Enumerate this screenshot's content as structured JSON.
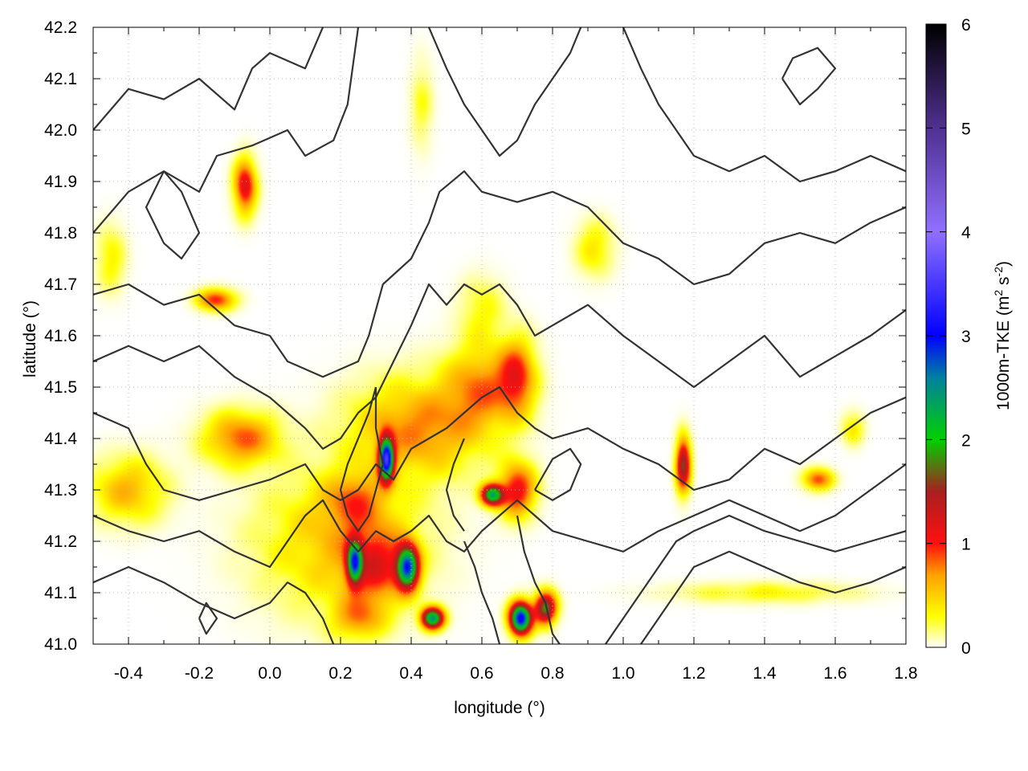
{
  "chart_data": {
    "type": "heatmap",
    "title": "",
    "xlabel": "longitude (°)",
    "ylabel": "latitude (°)",
    "colorbar_label": "1000m-TKE (m² s⁻²)",
    "colorbar_label_parts": {
      "main": "1000m-TKE (m",
      "sup1": "2",
      "mid": " s",
      "sup2": "-2",
      "end": ")"
    },
    "xlim": [
      -0.5,
      1.8
    ],
    "ylim": [
      41.0,
      42.2
    ],
    "clim": [
      0,
      6
    ],
    "x_ticks": [
      -0.4,
      -0.2,
      0.0,
      0.2,
      0.4,
      0.6,
      0.8,
      1.0,
      1.2,
      1.4,
      1.6,
      1.8
    ],
    "x_tick_labels": [
      "-0.4",
      "-0.2",
      "0.0",
      "0.2",
      "0.4",
      "0.6",
      "0.8",
      "1.0",
      "1.2",
      "1.4",
      "1.6",
      "1.8"
    ],
    "y_ticks": [
      41.0,
      41.1,
      41.2,
      41.3,
      41.4,
      41.5,
      41.6,
      41.7,
      41.8,
      41.9,
      42.0,
      42.1,
      42.2
    ],
    "y_tick_labels": [
      "41.0",
      "41.1",
      "41.2",
      "41.3",
      "41.4",
      "41.5",
      "41.6",
      "41.7",
      "41.8",
      "41.9",
      "42.0",
      "42.1",
      "42.2"
    ],
    "colorbar_ticks": [
      0,
      1,
      2,
      3,
      4,
      5,
      6
    ],
    "colorbar_tick_labels": [
      "0",
      "1",
      "2",
      "3",
      "4",
      "5",
      "6"
    ],
    "colormap": [
      {
        "v": 0.0,
        "c": "#ffffff"
      },
      {
        "v": 0.3,
        "c": "#ffff00"
      },
      {
        "v": 0.7,
        "c": "#ffa000"
      },
      {
        "v": 1.0,
        "c": "#ff1010"
      },
      {
        "v": 1.5,
        "c": "#a82020"
      },
      {
        "v": 2.0,
        "c": "#00d000"
      },
      {
        "v": 2.6,
        "c": "#0080a0"
      },
      {
        "v": 3.0,
        "c": "#0000ff"
      },
      {
        "v": 4.0,
        "c": "#9070ff"
      },
      {
        "v": 5.0,
        "c": "#503090"
      },
      {
        "v": 6.0,
        "c": "#000000"
      }
    ],
    "grid": true,
    "tke_features": [
      {
        "lon": 0.2,
        "lat": 41.2,
        "slon": 0.22,
        "slat": 0.13,
        "amp": 0.55
      },
      {
        "lon": 0.42,
        "lat": 41.42,
        "slon": 0.18,
        "slat": 0.09,
        "amp": 0.75
      },
      {
        "lon": 0.6,
        "lat": 41.5,
        "slon": 0.1,
        "slat": 0.08,
        "amp": 0.7
      },
      {
        "lon": -0.08,
        "lat": 41.4,
        "slon": 0.1,
        "slat": 0.05,
        "amp": 0.85
      },
      {
        "lon": -0.4,
        "lat": 41.3,
        "slon": 0.1,
        "slat": 0.06,
        "amp": 0.6
      },
      {
        "lon": 0.24,
        "lat": 41.28,
        "slon": 0.08,
        "slat": 0.05,
        "amp": 0.55
      },
      {
        "lon": 0.3,
        "lat": 41.15,
        "slon": 0.08,
        "slat": 0.07,
        "amp": 0.8
      },
      {
        "lon": 0.25,
        "lat": 41.05,
        "slon": 0.07,
        "slat": 0.04,
        "amp": 0.6
      },
      {
        "lon": 0.24,
        "lat": 41.16,
        "slon": 0.02,
        "slat": 0.04,
        "amp": 2.2
      },
      {
        "lon": 0.39,
        "lat": 41.15,
        "slon": 0.03,
        "slat": 0.04,
        "amp": 2.6
      },
      {
        "lon": 0.33,
        "lat": 41.36,
        "slon": 0.02,
        "slat": 0.04,
        "amp": 3.1
      },
      {
        "lon": 0.7,
        "lat": 41.52,
        "slon": 0.05,
        "slat": 0.07,
        "amp": 0.9
      },
      {
        "lon": 0.7,
        "lat": 41.3,
        "slon": 0.05,
        "slat": 0.05,
        "amp": 1.1
      },
      {
        "lon": 0.63,
        "lat": 41.29,
        "slon": 0.03,
        "slat": 0.02,
        "amp": 2.2
      },
      {
        "lon": 0.71,
        "lat": 41.05,
        "slon": 0.03,
        "slat": 0.03,
        "amp": 3.1
      },
      {
        "lon": 0.78,
        "lat": 41.07,
        "slon": 0.03,
        "slat": 0.03,
        "amp": 1.8
      },
      {
        "lon": 0.46,
        "lat": 41.05,
        "slon": 0.03,
        "slat": 0.02,
        "amp": 2.4
      },
      {
        "lon": -0.07,
        "lat": 41.89,
        "slon": 0.03,
        "slat": 0.05,
        "amp": 1.2
      },
      {
        "lon": -0.15,
        "lat": 41.67,
        "slon": 0.05,
        "slat": 0.02,
        "amp": 1.0
      },
      {
        "lon": 0.92,
        "lat": 41.77,
        "slon": 0.05,
        "slat": 0.05,
        "amp": 0.4
      },
      {
        "lon": 1.17,
        "lat": 41.35,
        "slon": 0.02,
        "slat": 0.05,
        "amp": 1.6
      },
      {
        "lon": 1.55,
        "lat": 41.32,
        "slon": 0.04,
        "slat": 0.02,
        "amp": 0.9
      },
      {
        "lon": 1.65,
        "lat": 41.42,
        "slon": 0.03,
        "slat": 0.03,
        "amp": 0.4
      },
      {
        "lon": 0.6,
        "lat": 41.65,
        "slon": 0.06,
        "slat": 0.06,
        "amp": 0.3
      },
      {
        "lon": -0.45,
        "lat": 41.75,
        "slon": 0.04,
        "slat": 0.06,
        "amp": 0.35
      },
      {
        "lon": 0.43,
        "lat": 42.05,
        "slon": 0.03,
        "slat": 0.08,
        "amp": 0.25
      },
      {
        "lon": 1.4,
        "lat": 41.1,
        "slon": 0.25,
        "slat": 0.02,
        "amp": 0.3
      }
    ],
    "contours": [
      [
        [
          -0.5,
          42.0
        ],
        [
          -0.4,
          42.08
        ],
        [
          -0.3,
          42.06
        ],
        [
          -0.2,
          42.1
        ],
        [
          -0.1,
          42.04
        ],
        [
          -0.05,
          42.12
        ],
        [
          0.0,
          42.15
        ],
        [
          0.1,
          42.12
        ],
        [
          0.15,
          42.2
        ]
      ],
      [
        [
          -0.5,
          41.8
        ],
        [
          -0.4,
          41.88
        ],
        [
          -0.3,
          41.92
        ],
        [
          -0.2,
          41.88
        ],
        [
          -0.15,
          41.95
        ],
        [
          -0.05,
          41.97
        ],
        [
          0.05,
          42.0
        ],
        [
          0.1,
          41.95
        ],
        [
          0.18,
          41.98
        ],
        [
          0.22,
          42.05
        ],
        [
          0.25,
          42.2
        ]
      ],
      [
        [
          -0.5,
          41.68
        ],
        [
          -0.4,
          41.7
        ],
        [
          -0.3,
          41.66
        ],
        [
          -0.2,
          41.68
        ],
        [
          -0.1,
          41.62
        ],
        [
          0.0,
          41.6
        ],
        [
          0.05,
          41.55
        ],
        [
          0.15,
          41.52
        ],
        [
          0.25,
          41.55
        ],
        [
          0.28,
          41.6
        ],
        [
          0.32,
          41.7
        ],
        [
          0.4,
          41.75
        ],
        [
          0.45,
          41.82
        ],
        [
          0.48,
          41.88
        ],
        [
          0.55,
          41.92
        ],
        [
          0.6,
          41.88
        ],
        [
          0.7,
          41.86
        ],
        [
          0.8,
          41.88
        ],
        [
          0.9,
          41.85
        ],
        [
          1.0,
          41.78
        ],
        [
          1.1,
          41.75
        ],
        [
          1.2,
          41.7
        ],
        [
          1.3,
          41.72
        ],
        [
          1.4,
          41.78
        ],
        [
          1.5,
          41.8
        ],
        [
          1.6,
          41.78
        ],
        [
          1.7,
          41.82
        ],
        [
          1.8,
          41.85
        ]
      ],
      [
        [
          -0.5,
          41.55
        ],
        [
          -0.4,
          41.58
        ],
        [
          -0.3,
          41.55
        ],
        [
          -0.2,
          41.58
        ],
        [
          -0.1,
          41.52
        ],
        [
          0.0,
          41.48
        ],
        [
          0.05,
          41.45
        ],
        [
          0.1,
          41.42
        ],
        [
          0.15,
          41.38
        ],
        [
          0.2,
          41.4
        ],
        [
          0.25,
          41.45
        ],
        [
          0.3,
          41.48
        ],
        [
          0.35,
          41.55
        ],
        [
          0.4,
          41.62
        ],
        [
          0.45,
          41.7
        ],
        [
          0.5,
          41.66
        ],
        [
          0.55,
          41.7
        ],
        [
          0.6,
          41.68
        ],
        [
          0.65,
          41.7
        ],
        [
          0.7,
          41.66
        ],
        [
          0.75,
          41.6
        ],
        [
          0.8,
          41.62
        ],
        [
          0.9,
          41.66
        ],
        [
          1.0,
          41.6
        ],
        [
          1.1,
          41.55
        ],
        [
          1.2,
          41.5
        ],
        [
          1.3,
          41.55
        ],
        [
          1.4,
          41.6
        ],
        [
          1.5,
          41.52
        ],
        [
          1.6,
          41.56
        ],
        [
          1.7,
          41.6
        ],
        [
          1.8,
          41.65
        ]
      ],
      [
        [
          -0.5,
          41.45
        ],
        [
          -0.4,
          41.42
        ],
        [
          -0.35,
          41.35
        ],
        [
          -0.3,
          41.3
        ],
        [
          -0.2,
          41.28
        ],
        [
          -0.1,
          41.3
        ],
        [
          0.0,
          41.32
        ],
        [
          0.1,
          41.35
        ],
        [
          0.15,
          41.3
        ],
        [
          0.2,
          41.28
        ],
        [
          0.25,
          41.3
        ],
        [
          0.3,
          41.35
        ],
        [
          0.35,
          41.32
        ],
        [
          0.4,
          41.38
        ],
        [
          0.45,
          41.4
        ],
        [
          0.5,
          41.42
        ],
        [
          0.55,
          41.45
        ],
        [
          0.6,
          41.48
        ],
        [
          0.65,
          41.5
        ],
        [
          0.7,
          41.45
        ],
        [
          0.75,
          41.42
        ],
        [
          0.8,
          41.4
        ],
        [
          0.9,
          41.42
        ],
        [
          1.0,
          41.38
        ],
        [
          1.1,
          41.35
        ],
        [
          1.2,
          41.3
        ],
        [
          1.3,
          41.32
        ],
        [
          1.4,
          41.38
        ],
        [
          1.5,
          41.35
        ],
        [
          1.6,
          41.4
        ],
        [
          1.7,
          41.45
        ],
        [
          1.8,
          41.48
        ]
      ],
      [
        [
          -0.5,
          41.25
        ],
        [
          -0.4,
          41.22
        ],
        [
          -0.3,
          41.2
        ],
        [
          -0.2,
          41.22
        ],
        [
          -0.1,
          41.18
        ],
        [
          0.0,
          41.15
        ],
        [
          0.05,
          41.2
        ],
        [
          0.1,
          41.25
        ],
        [
          0.15,
          41.28
        ],
        [
          0.2,
          41.22
        ],
        [
          0.25,
          41.18
        ],
        [
          0.3,
          41.22
        ],
        [
          0.35,
          41.2
        ],
        [
          0.4,
          41.22
        ],
        [
          0.45,
          41.25
        ],
        [
          0.5,
          41.2
        ],
        [
          0.55,
          41.18
        ],
        [
          0.6,
          41.22
        ],
        [
          0.65,
          41.25
        ],
        [
          0.7,
          41.28
        ],
        [
          0.75,
          41.25
        ],
        [
          0.8,
          41.22
        ],
        [
          0.9,
          41.2
        ],
        [
          1.0,
          41.18
        ],
        [
          1.1,
          41.22
        ],
        [
          1.2,
          41.25
        ],
        [
          1.3,
          41.28
        ],
        [
          1.4,
          41.25
        ],
        [
          1.5,
          41.22
        ],
        [
          1.6,
          41.25
        ],
        [
          1.7,
          41.3
        ],
        [
          1.8,
          41.35
        ]
      ],
      [
        [
          -0.5,
          41.12
        ],
        [
          -0.4,
          41.15
        ],
        [
          -0.3,
          41.12
        ],
        [
          -0.2,
          41.08
        ],
        [
          -0.1,
          41.05
        ],
        [
          0.0,
          41.08
        ],
        [
          0.05,
          41.12
        ],
        [
          0.1,
          41.1
        ],
        [
          0.15,
          41.05
        ],
        [
          0.18,
          41.0
        ]
      ],
      [
        [
          0.95,
          41.0
        ],
        [
          1.0,
          41.05
        ],
        [
          1.05,
          41.1
        ],
        [
          1.1,
          41.15
        ],
        [
          1.15,
          41.2
        ],
        [
          1.2,
          41.22
        ],
        [
          1.3,
          41.25
        ],
        [
          1.4,
          41.22
        ],
        [
          1.5,
          41.2
        ],
        [
          1.6,
          41.18
        ],
        [
          1.7,
          41.2
        ],
        [
          1.8,
          41.22
        ]
      ],
      [
        [
          1.05,
          41.0
        ],
        [
          1.1,
          41.05
        ],
        [
          1.15,
          41.1
        ],
        [
          1.2,
          41.15
        ],
        [
          1.3,
          41.18
        ],
        [
          1.4,
          41.15
        ],
        [
          1.5,
          41.12
        ],
        [
          1.6,
          41.1
        ],
        [
          1.7,
          41.12
        ],
        [
          1.8,
          41.15
        ]
      ],
      [
        [
          0.3,
          41.5
        ],
        [
          0.28,
          41.45
        ],
        [
          0.25,
          41.4
        ],
        [
          0.22,
          41.35
        ],
        [
          0.2,
          41.3
        ],
        [
          0.22,
          41.25
        ],
        [
          0.25,
          41.22
        ],
        [
          0.28,
          41.25
        ],
        [
          0.3,
          41.3
        ],
        [
          0.32,
          41.35
        ],
        [
          0.3,
          41.42
        ],
        [
          0.3,
          41.5
        ]
      ],
      [
        [
          0.55,
          41.2
        ],
        [
          0.58,
          41.15
        ],
        [
          0.6,
          41.1
        ],
        [
          0.63,
          41.05
        ],
        [
          0.65,
          41.0
        ]
      ],
      [
        [
          0.7,
          41.25
        ],
        [
          0.72,
          41.18
        ],
        [
          0.75,
          41.12
        ],
        [
          0.78,
          41.08
        ],
        [
          0.8,
          41.02
        ],
        [
          0.82,
          41.0
        ]
      ],
      [
        [
          0.55,
          41.4
        ],
        [
          0.52,
          41.35
        ],
        [
          0.5,
          41.3
        ],
        [
          0.52,
          41.25
        ],
        [
          0.55,
          41.22
        ]
      ],
      [
        [
          1.0,
          42.2
        ],
        [
          1.05,
          42.12
        ],
        [
          1.1,
          42.05
        ],
        [
          1.15,
          42.0
        ],
        [
          1.2,
          41.95
        ],
        [
          1.3,
          41.92
        ],
        [
          1.4,
          41.95
        ],
        [
          1.5,
          41.9
        ],
        [
          1.6,
          41.92
        ],
        [
          1.7,
          41.95
        ],
        [
          1.8,
          41.92
        ]
      ],
      [
        [
          0.45,
          42.2
        ],
        [
          0.5,
          42.12
        ],
        [
          0.55,
          42.05
        ],
        [
          0.6,
          42.0
        ],
        [
          0.65,
          41.95
        ],
        [
          0.7,
          41.98
        ],
        [
          0.75,
          42.05
        ],
        [
          0.8,
          42.1
        ],
        [
          0.85,
          42.15
        ],
        [
          0.88,
          42.2
        ]
      ],
      [
        [
          -0.3,
          41.92
        ],
        [
          -0.35,
          41.85
        ],
        [
          -0.3,
          41.78
        ],
        [
          -0.25,
          41.75
        ],
        [
          -0.2,
          41.8
        ],
        [
          -0.25,
          41.88
        ],
        [
          -0.3,
          41.92
        ]
      ],
      [
        [
          1.45,
          42.1
        ],
        [
          1.5,
          42.05
        ],
        [
          1.55,
          42.08
        ],
        [
          1.6,
          42.12
        ],
        [
          1.55,
          42.16
        ],
        [
          1.48,
          42.14
        ],
        [
          1.45,
          42.1
        ]
      ],
      [
        [
          0.75,
          41.3
        ],
        [
          0.8,
          41.28
        ],
        [
          0.85,
          41.3
        ],
        [
          0.88,
          41.35
        ],
        [
          0.85,
          41.38
        ],
        [
          0.8,
          41.36
        ],
        [
          0.75,
          41.3
        ]
      ],
      [
        [
          -0.2,
          41.05
        ],
        [
          -0.18,
          41.02
        ],
        [
          -0.15,
          41.05
        ],
        [
          -0.18,
          41.08
        ],
        [
          -0.2,
          41.05
        ]
      ]
    ]
  }
}
